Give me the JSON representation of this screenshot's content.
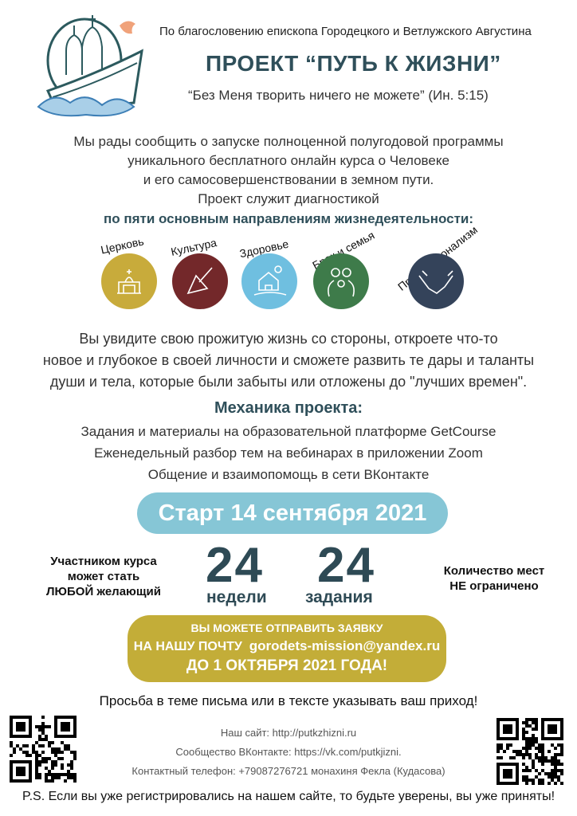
{
  "header": {
    "blessing": "По благословению епископа Городецкого и Ветлужского Августина",
    "title": "ПРОЕКТ “ПУТЬ К ЖИЗНИ”",
    "quote": "“Без Меня творить ничего не можете” (Ин. 5:15)"
  },
  "intro": {
    "lines": [
      "Мы рады сообщить о запуске полноценной полугодовой программы",
      "уникального бесплатного онлайн курса о Человеке",
      "и его самосовершенствовании в земном пути.",
      "Проект служит диагностикой"
    ],
    "emphasis": "по пяти основным направлениям жизнедеятельности:"
  },
  "directions": [
    {
      "label": "Церковь",
      "icon": "church-icon",
      "color": "#c8ab3b"
    },
    {
      "label": "Культура",
      "icon": "balalaika-icon",
      "color": "#73282a"
    },
    {
      "label": "Здоровье",
      "icon": "house-nature-icon",
      "color": "#6fbfe0"
    },
    {
      "label": "Брак и семья",
      "icon": "family-icon",
      "color": "#3e7b4a"
    },
    {
      "label": "Профессионализм",
      "icon": "handshake-icon",
      "color": "#34435a"
    }
  ],
  "description": [
    "Вы увидите свою прожитую жизнь со стороны, откроете что-то",
    "новое и глубокое в своей личности и сможете развить те дары и таланты",
    "души и тела, которые были забыты или отложены до \"лучших времен\"."
  ],
  "mechanics": {
    "title": "Механика проекта:",
    "lines": [
      "Задания и материалы на образовательной платформе GetCourse",
      "Еженедельный разбор тем на вебинарах в приложении Zoom",
      "Общение и взаимопомощь в сети ВКонтакте"
    ]
  },
  "start": "Старт 14 сентября 2021",
  "stats": {
    "left": [
      "Участником курса",
      "может стать",
      "ЛЮБОЙ желающий"
    ],
    "weeks_num": "24",
    "weeks_label": "недели",
    "tasks_num": "24",
    "tasks_label": "задания",
    "right": [
      "Количество мест",
      "НЕ ограничено"
    ]
  },
  "apply": {
    "line1": "ВЫ МОЖЕТЕ ОТПРАВИТЬ ЗАЯВКУ",
    "line2_prefix": "НА НАШУ ПОЧТУ",
    "email": "gorodets-mission@yandex.ru",
    "deadline": "ДО 1 ОКТЯБРЯ 2021 ГОДА!"
  },
  "note": "Просьба в теме письма или в тексте указывать ваш приход!",
  "contacts": [
    "Наш сайт: http://putkzhizni.ru",
    "Сообщество ВКонтакте: https://vk.com/putkjizni.",
    "Контактный телефон: +79087276721 монахиня Фекла (Кудасова)"
  ],
  "ps": "P.S. Если вы уже регистрировались на нашем сайте, то будьте уверены, вы уже приняты!",
  "colors": {
    "heading": "#2f4f5a",
    "pill": "#86c6d6",
    "apply_box": "#c3ad38"
  }
}
